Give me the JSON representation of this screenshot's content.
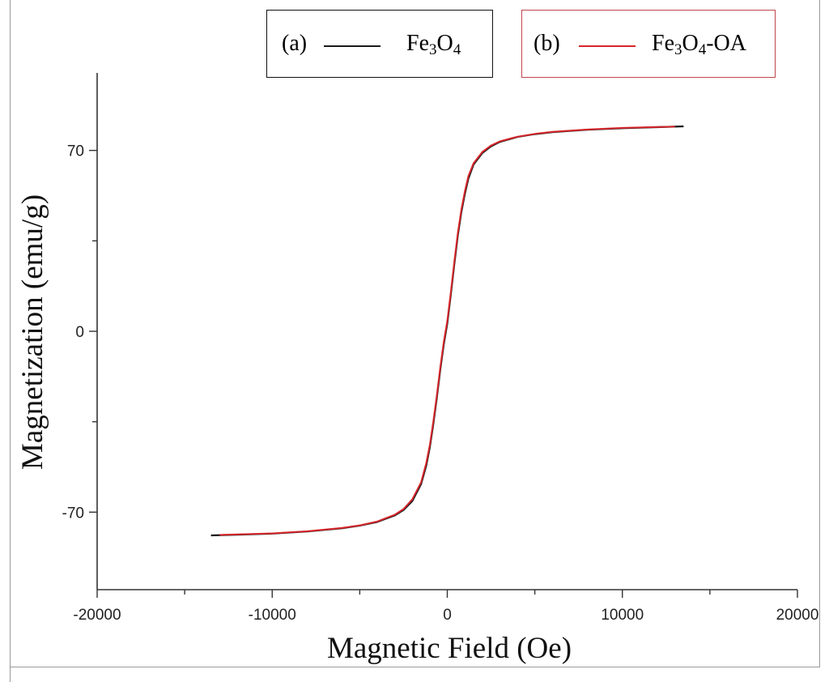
{
  "chart_data": {
    "type": "line",
    "xlabel": "Magnetic Field (Oe)",
    "ylabel": "Magnetization (emu/g)",
    "xlim": [
      -20000,
      20000
    ],
    "ylim": [
      -100,
      100
    ],
    "x_ticks": [
      -20000,
      -10000,
      0,
      10000,
      20000
    ],
    "x_tick_labels": [
      "-20000",
      "-10000",
      "0",
      "10000",
      "20000"
    ],
    "y_ticks": [
      -70,
      0,
      70
    ],
    "y_tick_labels": [
      "-70",
      "0",
      "70"
    ],
    "grid": false,
    "legend_placement": "top",
    "series": [
      {
        "name": "Fe3O4",
        "legend_tag": "(a)",
        "legend_label": "Fe",
        "legend_sub1": "3",
        "legend_mid": "O",
        "legend_sub2": "4",
        "legend_suffix": "",
        "color": "#1a1a1a",
        "x": [
          -13500,
          -12000,
          -10000,
          -8000,
          -6000,
          -5000,
          -4000,
          -3000,
          -2500,
          -2000,
          -1500,
          -1200,
          -1000,
          -800,
          -600,
          -400,
          -200,
          0,
          200,
          400,
          600,
          800,
          1000,
          1200,
          1500,
          2000,
          2500,
          3000,
          4000,
          5000,
          6000,
          8000,
          10000,
          12000,
          13500
        ],
        "y": [
          -79,
          -78.7,
          -78.3,
          -77.5,
          -76.2,
          -75.2,
          -73.8,
          -71.3,
          -69.2,
          -65.7,
          -59.2,
          -52,
          -45,
          -36,
          -26,
          -15,
          -5,
          3,
          14,
          26,
          37,
          46,
          53,
          59,
          64.5,
          69,
          71.6,
          73.3,
          75.2,
          76.3,
          77.1,
          78,
          78.6,
          79,
          79.3
        ]
      },
      {
        "name": "Fe3O4-OA",
        "legend_tag": "(b)",
        "legend_label": "Fe",
        "legend_sub1": "3",
        "legend_mid": "O",
        "legend_sub2": "4",
        "legend_suffix": "-OA",
        "color": "#d6262b",
        "x": [
          -13000,
          -12000,
          -10000,
          -8000,
          -6000,
          -5000,
          -4000,
          -3000,
          -2500,
          -2000,
          -1500,
          -1200,
          -1000,
          -800,
          -600,
          -400,
          -200,
          0,
          200,
          400,
          600,
          800,
          1000,
          1200,
          1500,
          2000,
          2500,
          3000,
          4000,
          5000,
          6000,
          8000,
          10000,
          12000,
          13000
        ],
        "y": [
          -78.8,
          -78.6,
          -78.2,
          -77.4,
          -76.1,
          -75.1,
          -73.6,
          -71,
          -68.8,
          -65,
          -58.5,
          -51,
          -44,
          -35,
          -25,
          -14,
          -4,
          4,
          15,
          27,
          38,
          47,
          54,
          60,
          65,
          69.4,
          71.9,
          73.5,
          75.3,
          76.4,
          77.2,
          78.1,
          78.7,
          79.1,
          79.2
        ]
      }
    ]
  }
}
